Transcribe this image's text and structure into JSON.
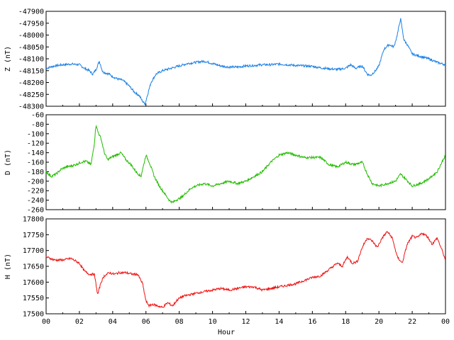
{
  "chart_data": [
    {
      "type": "line",
      "ylabel": "Z (nT)",
      "ylim": [
        -48300,
        -47900
      ],
      "yticks": [
        -47900,
        -47950,
        -48000,
        -48050,
        -48100,
        -48150,
        -48200,
        -48250,
        -48300
      ],
      "xlim": [
        0,
        24
      ],
      "grid": false,
      "series": [
        {
          "color": "#1a80e6",
          "x": [
            0,
            0.5,
            1,
            1.5,
            2,
            2.3,
            2.6,
            2.8,
            3.0,
            3.2,
            3.4,
            3.6,
            3.8,
            4.0,
            4.3,
            4.6,
            5.0,
            5.3,
            5.6,
            5.8,
            5.95,
            6.1,
            6.3,
            6.6,
            7,
            7.5,
            8,
            8.5,
            9,
            9.5,
            10,
            10.5,
            11,
            11.5,
            12,
            12.5,
            13,
            13.5,
            14,
            14.5,
            15,
            15.5,
            16,
            16.5,
            17,
            17.5,
            18,
            18.3,
            18.6,
            19,
            19.3,
            19.5,
            19.8,
            20,
            20.3,
            20.6,
            20.9,
            21.1,
            21.3,
            21.5,
            21.7,
            22,
            22.5,
            23,
            23.5,
            24
          ],
          "y": [
            -48140,
            -48130,
            -48125,
            -48122,
            -48125,
            -48140,
            -48150,
            -48165,
            -48145,
            -48110,
            -48155,
            -48160,
            -48165,
            -48175,
            -48185,
            -48190,
            -48215,
            -48240,
            -48255,
            -48280,
            -48290,
            -48250,
            -48200,
            -48165,
            -48150,
            -48140,
            -48130,
            -48120,
            -48115,
            -48110,
            -48120,
            -48130,
            -48135,
            -48135,
            -48130,
            -48128,
            -48125,
            -48125,
            -48122,
            -48125,
            -48128,
            -48130,
            -48132,
            -48138,
            -48142,
            -48145,
            -48140,
            -48125,
            -48140,
            -48130,
            -48165,
            -48170,
            -48150,
            -48130,
            -48060,
            -48040,
            -48050,
            -48000,
            -47930,
            -48020,
            -48040,
            -48080,
            -48090,
            -48100,
            -48115,
            -48125
          ]
        }
      ]
    },
    {
      "type": "line",
      "ylabel": "D (nT)",
      "ylim": [
        -260,
        -60
      ],
      "yticks": [
        -60,
        -80,
        -100,
        -120,
        -140,
        -160,
        -180,
        -200,
        -220,
        -240,
        -260
      ],
      "xlim": [
        0,
        24
      ],
      "grid": false,
      "series": [
        {
          "color": "#22bb00",
          "x": [
            0,
            0.3,
            0.6,
            0.9,
            1.2,
            1.5,
            1.8,
            2.1,
            2.4,
            2.7,
            2.9,
            3.0,
            3.1,
            3.3,
            3.5,
            3.7,
            3.9,
            4.2,
            4.5,
            4.8,
            5.1,
            5.4,
            5.7,
            6.0,
            6.2,
            6.5,
            6.8,
            7.1,
            7.4,
            7.6,
            7.8,
            8.1,
            8.4,
            8.7,
            9,
            9.5,
            10,
            10.5,
            11,
            11.5,
            12,
            12.5,
            13,
            13.5,
            14,
            14.5,
            15,
            15.5,
            16,
            16.5,
            17,
            17.5,
            18,
            18.5,
            19,
            19.3,
            19.6,
            20,
            20.5,
            21,
            21.3,
            21.6,
            22,
            22.5,
            23,
            23.5,
            24
          ],
          "y": [
            -180,
            -190,
            -185,
            -175,
            -170,
            -168,
            -165,
            -160,
            -158,
            -165,
            -120,
            -80,
            -95,
            -110,
            -140,
            -155,
            -150,
            -145,
            -140,
            -155,
            -165,
            -180,
            -190,
            -145,
            -160,
            -190,
            -210,
            -225,
            -240,
            -245,
            -240,
            -235,
            -225,
            -215,
            -210,
            -205,
            -210,
            -205,
            -200,
            -205,
            -200,
            -190,
            -180,
            -160,
            -145,
            -140,
            -145,
            -150,
            -150,
            -150,
            -165,
            -170,
            -160,
            -165,
            -160,
            -185,
            -205,
            -210,
            -205,
            -200,
            -185,
            -195,
            -210,
            -205,
            -195,
            -180,
            -145
          ]
        }
      ]
    },
    {
      "type": "line",
      "ylabel": "H (nT)",
      "xlabel": "Hour",
      "ylim": [
        17500,
        17800
      ],
      "yticks": [
        17500,
        17550,
        17600,
        17650,
        17700,
        17750,
        17800
      ],
      "xlim": [
        0,
        24
      ],
      "xticks": [
        "00",
        "02",
        "04",
        "06",
        "08",
        "10",
        "12",
        "14",
        "16",
        "18",
        "20",
        "22",
        "00"
      ],
      "grid": false,
      "series": [
        {
          "color": "#ee1111",
          "x": [
            0,
            0.5,
            1,
            1.5,
            2,
            2.3,
            2.6,
            2.9,
            3.1,
            3.3,
            3.5,
            3.8,
            4.1,
            4.4,
            4.8,
            5.2,
            5.5,
            5.8,
            6.0,
            6.2,
            6.4,
            6.7,
            7,
            7.3,
            7.6,
            7.9,
            8.2,
            8.6,
            9,
            9.5,
            10,
            10.5,
            11,
            11.5,
            12,
            12.5,
            13,
            13.5,
            14,
            14.5,
            15,
            15.5,
            16,
            16.5,
            17,
            17.5,
            17.8,
            18.1,
            18.4,
            18.7,
            19.0,
            19.3,
            19.6,
            19.9,
            20.2,
            20.5,
            20.8,
            21.1,
            21.4,
            21.7,
            22,
            22.3,
            22.6,
            22.9,
            23.2,
            23.5,
            23.8,
            24
          ],
          "y": [
            17680,
            17670,
            17670,
            17675,
            17660,
            17635,
            17625,
            17625,
            17560,
            17600,
            17620,
            17630,
            17625,
            17630,
            17630,
            17625,
            17625,
            17595,
            17540,
            17525,
            17530,
            17525,
            17520,
            17535,
            17525,
            17545,
            17555,
            17560,
            17565,
            17570,
            17575,
            17580,
            17575,
            17580,
            17585,
            17585,
            17575,
            17580,
            17585,
            17590,
            17595,
            17605,
            17615,
            17620,
            17640,
            17660,
            17650,
            17680,
            17660,
            17665,
            17710,
            17740,
            17730,
            17710,
            17740,
            17760,
            17740,
            17680,
            17660,
            17720,
            17745,
            17740,
            17755,
            17745,
            17720,
            17740,
            17700,
            17670
          ]
        }
      ]
    }
  ]
}
